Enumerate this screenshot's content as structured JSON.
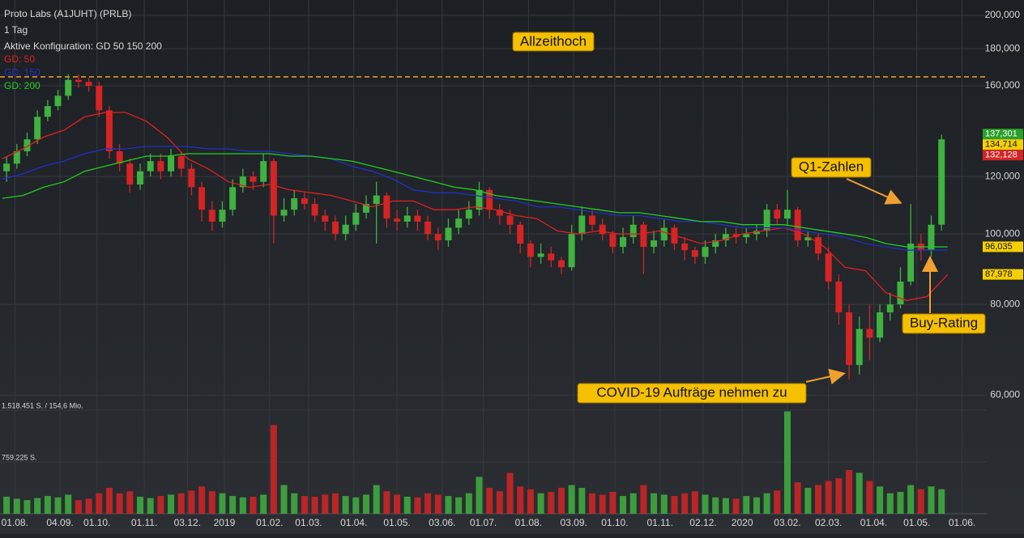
{
  "chart_data": {
    "type": "candlestick",
    "title": "Proto Labs (A1JUHT) (PRLB)",
    "subtitle": "1 Tag",
    "config_label": "Aktive Konfiguration: GD 50 150 200",
    "up_color": "#3fb23f",
    "down_color": "#d42424",
    "open": [
      122,
      125,
      130,
      135,
      145,
      150,
      155,
      163,
      162,
      160,
      148,
      130,
      125,
      117,
      122,
      126,
      122,
      128,
      123,
      116,
      108,
      104,
      108,
      116,
      120,
      118,
      126,
      106,
      108,
      112,
      110,
      106,
      104,
      100,
      103,
      107,
      110,
      113,
      105,
      104,
      106,
      104,
      100,
      98,
      102,
      105,
      108,
      115,
      108,
      106,
      103,
      97,
      93,
      94,
      92,
      90,
      100,
      106,
      103,
      100,
      96,
      99,
      103,
      96,
      98,
      102,
      97,
      95,
      93,
      96,
      98,
      100,
      99,
      100,
      101,
      108,
      105,
      108,
      98,
      99,
      94,
      86,
      78,
      66,
      74,
      72,
      78,
      80,
      86,
      97,
      95,
      103
    ],
    "high": [
      128,
      133,
      138,
      148,
      153,
      158,
      166,
      166,
      164,
      162,
      150,
      133,
      127,
      125,
      129,
      129,
      131,
      130,
      125,
      118,
      111,
      111,
      119,
      123,
      122,
      129,
      127,
      112,
      115,
      114,
      112,
      108,
      106,
      106,
      110,
      113,
      118,
      114,
      108,
      109,
      108,
      106,
      102,
      105,
      108,
      111,
      118,
      116,
      110,
      108,
      104,
      98,
      97,
      96,
      93,
      103,
      109,
      108,
      105,
      101,
      102,
      106,
      104,
      101,
      105,
      103,
      99,
      96,
      98,
      100,
      102,
      102,
      102,
      103,
      110,
      110,
      115,
      109,
      101,
      100,
      96,
      88,
      80,
      77,
      80,
      80,
      83,
      90,
      110,
      100,
      106,
      137
    ],
    "low": [
      118,
      123,
      128,
      133,
      143,
      148,
      153,
      159,
      157,
      145,
      127,
      122,
      114,
      115,
      120,
      119,
      120,
      120,
      113,
      104,
      101,
      102,
      106,
      114,
      115,
      116,
      97,
      104,
      106,
      108,
      104,
      101,
      98,
      98,
      101,
      105,
      97,
      102,
      101,
      102,
      101,
      98,
      95,
      96,
      100,
      103,
      106,
      105,
      103,
      100,
      94,
      90,
      91,
      90,
      88,
      89,
      98,
      101,
      98,
      94,
      94,
      97,
      88,
      94,
      96,
      95,
      92,
      91,
      91,
      94,
      96,
      97,
      97,
      98,
      99,
      103,
      103,
      96,
      96,
      92,
      84,
      75,
      63,
      64,
      67,
      71,
      76,
      79,
      85,
      92,
      93,
      101
    ],
    "close": [
      125,
      130,
      135,
      145,
      150,
      155,
      163,
      162,
      160,
      148,
      130,
      125,
      117,
      122,
      126,
      122,
      128,
      123,
      116,
      108,
      104,
      108,
      116,
      120,
      118,
      126,
      106,
      108,
      112,
      110,
      106,
      104,
      100,
      103,
      107,
      110,
      113,
      105,
      104,
      106,
      104,
      100,
      98,
      102,
      105,
      108,
      115,
      108,
      106,
      103,
      97,
      93,
      94,
      92,
      90,
      100,
      106,
      103,
      100,
      96,
      99,
      103,
      96,
      98,
      102,
      97,
      95,
      93,
      96,
      98,
      100,
      99,
      100,
      101,
      108,
      105,
      108,
      98,
      99,
      94,
      86,
      78,
      66,
      74,
      72,
      78,
      80,
      86,
      97,
      95,
      103,
      135
    ],
    "moving_averages": [
      {
        "name": "GD: 50",
        "color": "#e02020",
        "values": [
          127,
          131,
          136,
          139,
          145,
          147,
          147,
          143,
          136,
          127,
          123,
          118,
          116,
          117,
          115,
          114,
          113,
          111,
          109,
          111,
          111,
          108,
          108,
          109,
          108,
          106,
          105,
          101,
          100,
          101,
          100,
          100,
          101,
          99,
          97,
          98,
          100,
          101,
          102,
          100,
          96,
          90,
          89,
          83,
          81,
          82,
          88
        ]
      },
      {
        "name": "GD: 150",
        "color": "#2030c8",
        "values": [
          119,
          121,
          124,
          126,
          129,
          131,
          131,
          132,
          132,
          132,
          131,
          131,
          130,
          130,
          129,
          128,
          127,
          124,
          122,
          119,
          115,
          114,
          114,
          113,
          112,
          111,
          109,
          109,
          108,
          107,
          106,
          106,
          105,
          104,
          104,
          103,
          102,
          102,
          102,
          101,
          100,
          99,
          97,
          96,
          95,
          95,
          95
        ]
      },
      {
        "name": "GD: 200",
        "color": "#20d020",
        "values": [
          112,
          113,
          116,
          118,
          122,
          124,
          126,
          128,
          128,
          129,
          129,
          129,
          129,
          129,
          128,
          128,
          127,
          126,
          124,
          122,
          120,
          118,
          116,
          115,
          113,
          112,
          111,
          110,
          109,
          108,
          107,
          107,
          106,
          105,
          104,
          104,
          103,
          103,
          103,
          102,
          101,
          100,
          99,
          97,
          96,
          96,
          96
        ]
      }
    ],
    "xlim": [
      -1.2,
      479
    ],
    "xticks": [
      {
        "value": 6,
        "label": "01.08."
      },
      {
        "value": 28,
        "label": "04.09."
      },
      {
        "value": 46,
        "label": "01.10."
      },
      {
        "value": 69,
        "label": "01.11."
      },
      {
        "value": 90,
        "label": "03.12."
      },
      {
        "value": 108,
        "label": "2019"
      },
      {
        "value": 130,
        "label": "01.02."
      },
      {
        "value": 149,
        "label": "01.03."
      },
      {
        "value": 171,
        "label": "01.04."
      },
      {
        "value": 192,
        "label": "01.05."
      },
      {
        "value": 214,
        "label": "03.06."
      },
      {
        "value": 234,
        "label": "01.07."
      },
      {
        "value": 256,
        "label": "01.08."
      },
      {
        "value": 278,
        "label": "03.09."
      },
      {
        "value": 298,
        "label": "01.10."
      },
      {
        "value": 320,
        "label": "01.11."
      },
      {
        "value": 341,
        "label": "02.12."
      },
      {
        "value": 360,
        "label": "2020"
      },
      {
        "value": 382,
        "label": "03.02."
      },
      {
        "value": 402,
        "label": "02.03."
      },
      {
        "value": 424,
        "label": "01.04."
      },
      {
        "value": 445,
        "label": "01.05."
      },
      {
        "value": 467,
        "label": "01.06."
      }
    ],
    "ylim": [
      57.2,
      210
    ],
    "yticks": [
      {
        "value": 200,
        "label": "200,000"
      },
      {
        "value": 180,
        "label": "180,000"
      },
      {
        "value": 160,
        "label": "160,000"
      },
      {
        "value": 120,
        "label": "120,000"
      },
      {
        "value": 100,
        "label": "100,000"
      },
      {
        "value": 80,
        "label": "80,000"
      },
      {
        "value": 60,
        "label": "60,000"
      }
    ],
    "log_scale": true,
    "grid": true,
    "volume": {
      "values": [
        250000,
        220000,
        200000,
        230000,
        260000,
        240000,
        280000,
        200000,
        220000,
        300000,
        380000,
        300000,
        330000,
        250000,
        230000,
        260000,
        280000,
        300000,
        340000,
        400000,
        330000,
        300000,
        260000,
        240000,
        250000,
        280000,
        1300000,
        420000,
        300000,
        260000,
        250000,
        280000,
        300000,
        260000,
        240000,
        280000,
        420000,
        330000,
        280000,
        250000,
        240000,
        300000,
        280000,
        260000,
        240000,
        300000,
        540000,
        380000,
        330000,
        600000,
        400000,
        360000,
        300000,
        320000,
        380000,
        420000,
        380000,
        300000,
        280000,
        320000,
        260000,
        300000,
        420000,
        300000,
        280000,
        260000,
        300000,
        330000,
        280000,
        240000,
        230000,
        220000,
        260000,
        240000,
        300000,
        340000,
        1500000,
        460000,
        380000,
        420000,
        480000,
        520000,
        640000,
        600000,
        480000,
        400000,
        300000,
        320000,
        420000,
        360000,
        400000,
        360000
      ],
      "vlim": [
        0,
        1518451
      ],
      "vticks": [
        {
          "value": 1518451,
          "label": "1.518.451 S. / 154,6 Mio."
        },
        {
          "value": 759225,
          "label": "759.225 S."
        }
      ]
    },
    "reference_line": {
      "value": 164.6,
      "color": "#f0a020"
    },
    "price_labels": [
      {
        "value": 137.301,
        "label": "137,301",
        "color": "#2aa02a"
      },
      {
        "value": 134.714,
        "label": "134,714",
        "color": "#f5d000"
      },
      {
        "value": 132.128,
        "label": "132,128",
        "color": "#d42424"
      },
      {
        "value": 96.035,
        "label": "96,035",
        "color": "#f5d000"
      },
      {
        "value": 87.978,
        "label": "87,978",
        "color": "#f5d000"
      }
    ],
    "annotations": [
      "Allzeithoch",
      "Q1-Zahlen",
      "Buy-Rating",
      "COVID-19 Aufträge nehmen zu"
    ]
  }
}
